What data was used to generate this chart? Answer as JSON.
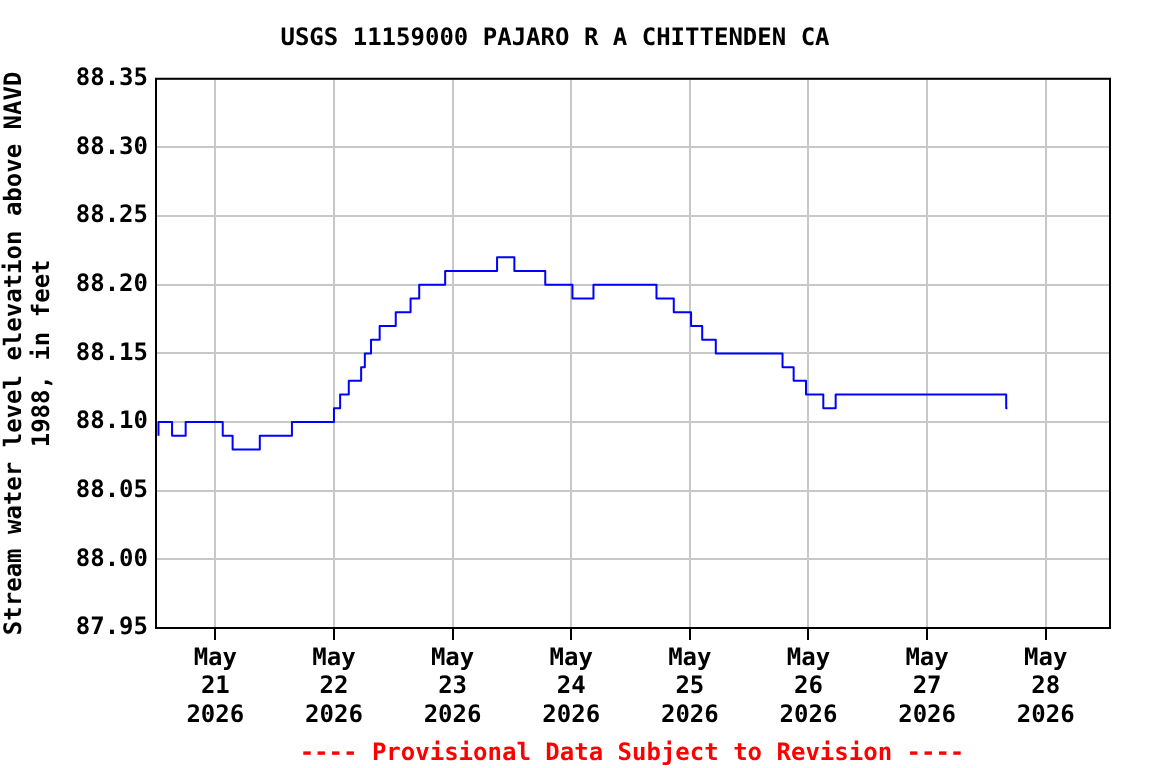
{
  "chart_data": {
    "type": "step",
    "title": "USGS 11159000 PAJARO R A CHITTENDEN CA",
    "ylabel": "Stream water level elevation above NAVD\n1988, in feet",
    "annotations": [
      "---- Provisional Data Subject to Revision ----"
    ],
    "x": [
      "2026-05-20T12:30",
      "2026-05-20T15:15",
      "2026-05-20T18:00",
      "2026-05-21T01:30",
      "2026-05-21T03:30",
      "2026-05-21T09:00",
      "2026-05-21T15:30",
      "2026-05-22T00:00",
      "2026-05-22T01:15",
      "2026-05-22T03:00",
      "2026-05-22T05:30",
      "2026-05-22T06:15",
      "2026-05-22T07:30",
      "2026-05-22T09:15",
      "2026-05-22T12:30",
      "2026-05-22T15:30",
      "2026-05-22T17:15",
      "2026-05-22T22:30",
      "2026-05-23T09:00",
      "2026-05-23T12:30",
      "2026-05-23T18:45",
      "2026-05-24T00:15",
      "2026-05-24T04:30",
      "2026-05-24T17:15",
      "2026-05-24T20:45",
      "2026-05-25T00:15",
      "2026-05-25T02:30",
      "2026-05-25T05:15",
      "2026-05-25T18:45",
      "2026-05-25T21:00",
      "2026-05-25T23:30",
      "2026-05-26T03:00",
      "2026-05-26T05:30",
      "2026-05-26T12:45",
      "2026-05-27T16:00",
      "2026-05-27T16:15"
    ],
    "series": [
      {
        "color": "#0000ff",
        "values": [
          88.09,
          88.1,
          88.09,
          88.1,
          88.09,
          88.08,
          88.09,
          88.1,
          88.11,
          88.12,
          88.13,
          88.14,
          88.15,
          88.16,
          88.17,
          88.18,
          88.19,
          88.2,
          88.21,
          88.22,
          88.21,
          88.2,
          88.19,
          88.2,
          88.19,
          88.18,
          88.17,
          88.16,
          88.15,
          88.14,
          88.13,
          88.12,
          88.11,
          88.12,
          88.12,
          88.11
        ]
      }
    ],
    "xlim": [
      "2026-05-20T12:00",
      "2026-05-28T13:00"
    ],
    "xticks": [
      {
        "value": "2026-05-21",
        "label": "May 21 2026"
      },
      {
        "value": "2026-05-22",
        "label": "May 22 2026"
      },
      {
        "value": "2026-05-23",
        "label": "May 23 2026"
      },
      {
        "value": "2026-05-24",
        "label": "May 24 2026"
      },
      {
        "value": "2026-05-25",
        "label": "May 25 2026"
      },
      {
        "value": "2026-05-26",
        "label": "May 26 2026"
      },
      {
        "value": "2026-05-27",
        "label": "May 27 2026"
      },
      {
        "value": "2026-05-28",
        "label": "May 28 2026"
      }
    ],
    "ylim": [
      87.95,
      88.35
    ],
    "yticks": [
      {
        "value": 87.95,
        "label": "87.95"
      },
      {
        "value": 88.0,
        "label": "88.00"
      },
      {
        "value": 88.05,
        "label": "88.05"
      },
      {
        "value": 88.1,
        "label": "88.10"
      },
      {
        "value": 88.15,
        "label": "88.15"
      },
      {
        "value": 88.2,
        "label": "88.20"
      },
      {
        "value": 88.25,
        "label": "88.25"
      },
      {
        "value": 88.3,
        "label": "88.30"
      },
      {
        "value": 88.35,
        "label": "88.35"
      }
    ],
    "grid": true,
    "legend": false
  }
}
